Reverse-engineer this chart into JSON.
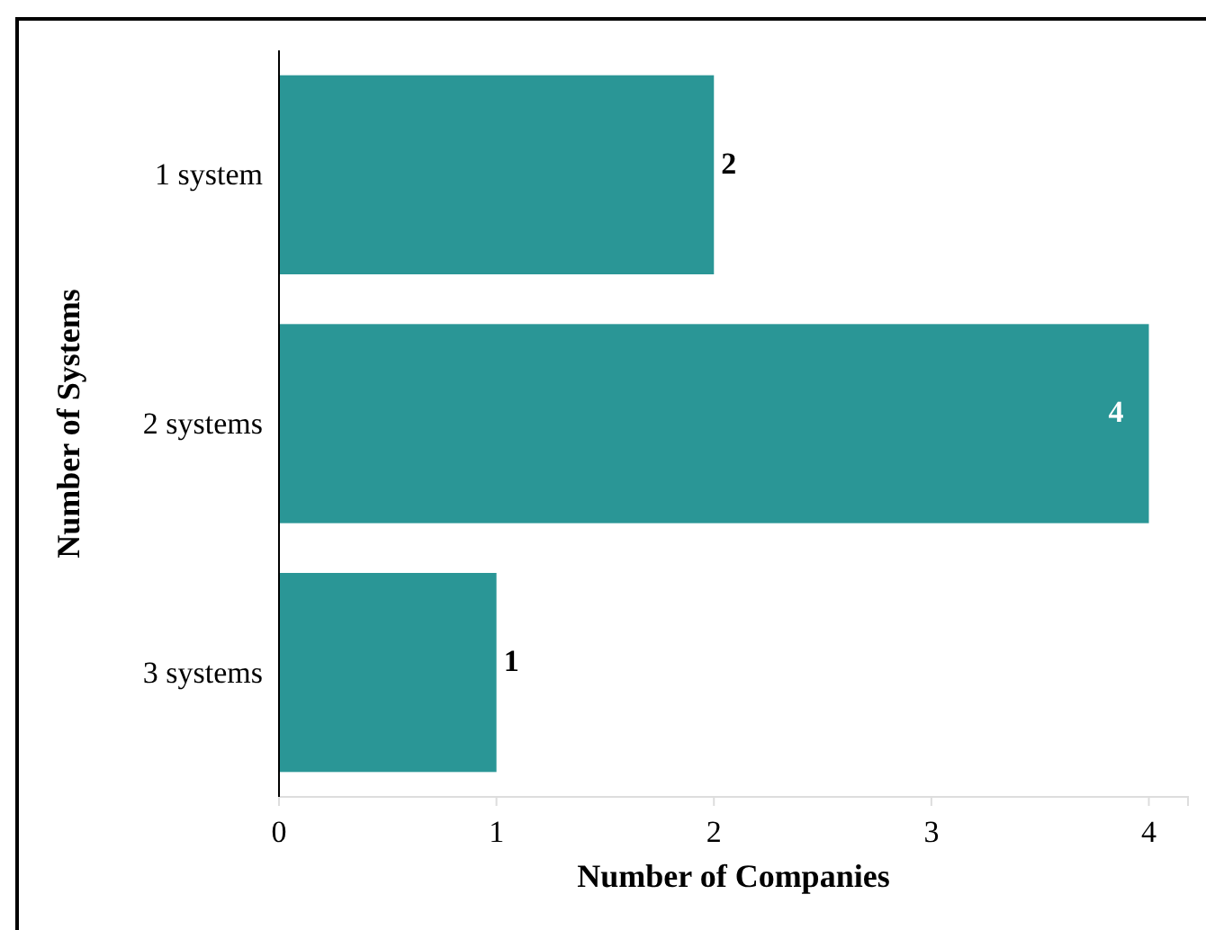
{
  "chart_data": {
    "type": "bar",
    "orientation": "horizontal",
    "xlabel": "Number of Companies",
    "ylabel": "Number of Systems",
    "categories": [
      "1 system",
      "2 systems",
      "3 systems"
    ],
    "values": [
      2,
      4,
      1
    ],
    "color": "#2a9696",
    "xlim": [
      0,
      4.18
    ],
    "xticks": [
      0,
      1,
      2,
      3,
      4
    ],
    "grid": false,
    "data_labels": true
  }
}
